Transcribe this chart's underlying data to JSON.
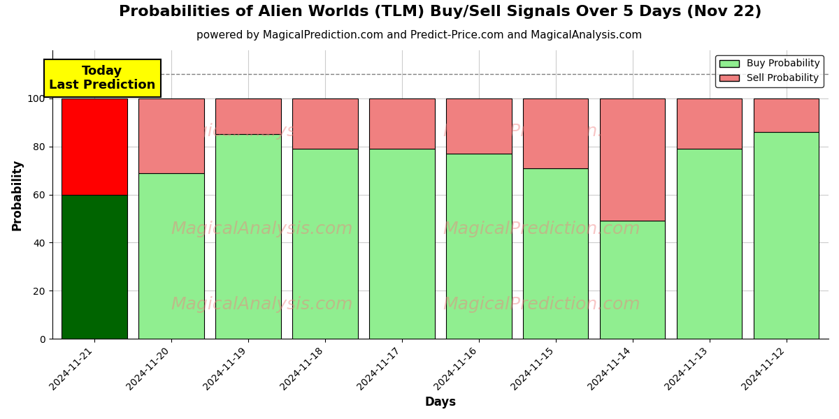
{
  "title": "Probabilities of Alien Worlds (TLM) Buy/Sell Signals Over 5 Days (Nov 22)",
  "subtitle": "powered by MagicalPrediction.com and Predict-Price.com and MagicalAnalysis.com",
  "xlabel": "Days",
  "ylabel": "Probability",
  "dates": [
    "2024-11-21",
    "2024-11-20",
    "2024-11-19",
    "2024-11-18",
    "2024-11-17",
    "2024-11-16",
    "2024-11-15",
    "2024-11-14",
    "2024-11-13",
    "2024-11-12"
  ],
  "buy_values": [
    60,
    69,
    85,
    79,
    79,
    77,
    71,
    49,
    79,
    86
  ],
  "sell_values": [
    40,
    31,
    15,
    21,
    21,
    23,
    29,
    51,
    21,
    14
  ],
  "buy_colors": [
    "#006400",
    "#90EE90",
    "#90EE90",
    "#90EE90",
    "#90EE90",
    "#90EE90",
    "#90EE90",
    "#90EE90",
    "#90EE90",
    "#90EE90"
  ],
  "sell_colors": [
    "#FF0000",
    "#F08080",
    "#F08080",
    "#F08080",
    "#F08080",
    "#F08080",
    "#F08080",
    "#F08080",
    "#F08080",
    "#F08080"
  ],
  "legend_buy_color": "#90EE90",
  "legend_sell_color": "#F08080",
  "annotation_text": "Today\nLast Prediction",
  "annotation_bg": "#FFFF00",
  "dashed_line_y": 110,
  "ylim": [
    0,
    120
  ],
  "watermark_color": "#F08080",
  "background_color": "#FFFFFF",
  "grid_color": "#CCCCCC",
  "title_fontsize": 16,
  "subtitle_fontsize": 11,
  "bar_width": 0.85
}
